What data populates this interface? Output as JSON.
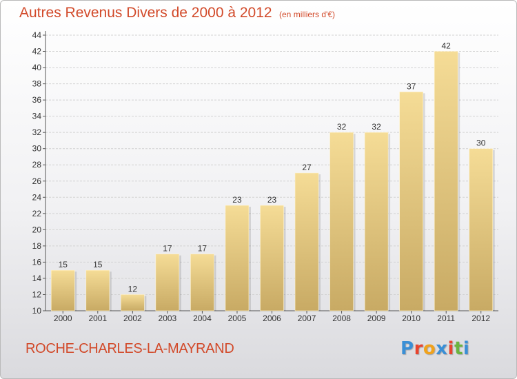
{
  "chart_data": {
    "type": "bar",
    "title": "Autres Revenus Divers de 2000 à 2012",
    "unit_label": "(en milliers d'€)",
    "categories": [
      "2000",
      "2001",
      "2002",
      "2003",
      "2004",
      "2005",
      "2006",
      "2007",
      "2008",
      "2009",
      "2010",
      "2011",
      "2012"
    ],
    "values": [
      15,
      15,
      12,
      17,
      17,
      23,
      23,
      27,
      32,
      32,
      37,
      42,
      30
    ],
    "ylim": [
      10,
      44
    ],
    "yticks": [
      10,
      12,
      14,
      16,
      18,
      20,
      22,
      24,
      26,
      28,
      30,
      32,
      34,
      36,
      38,
      40,
      42,
      44
    ],
    "grid": true,
    "bar_color_top": "#f5dc96",
    "bar_color_bottom": "#c8aa64"
  },
  "commune": "ROCHE-CHARLES-LA-MAYRAND",
  "logo": {
    "letters": [
      "P",
      "r",
      "o",
      "x",
      "i",
      "t",
      "i"
    ],
    "colors": [
      "#3a8fd6",
      "#e8442e",
      "#f0a21c",
      "#3a8fd6",
      "#e8442e",
      "#6bb43f",
      "#3a8fd6"
    ]
  }
}
